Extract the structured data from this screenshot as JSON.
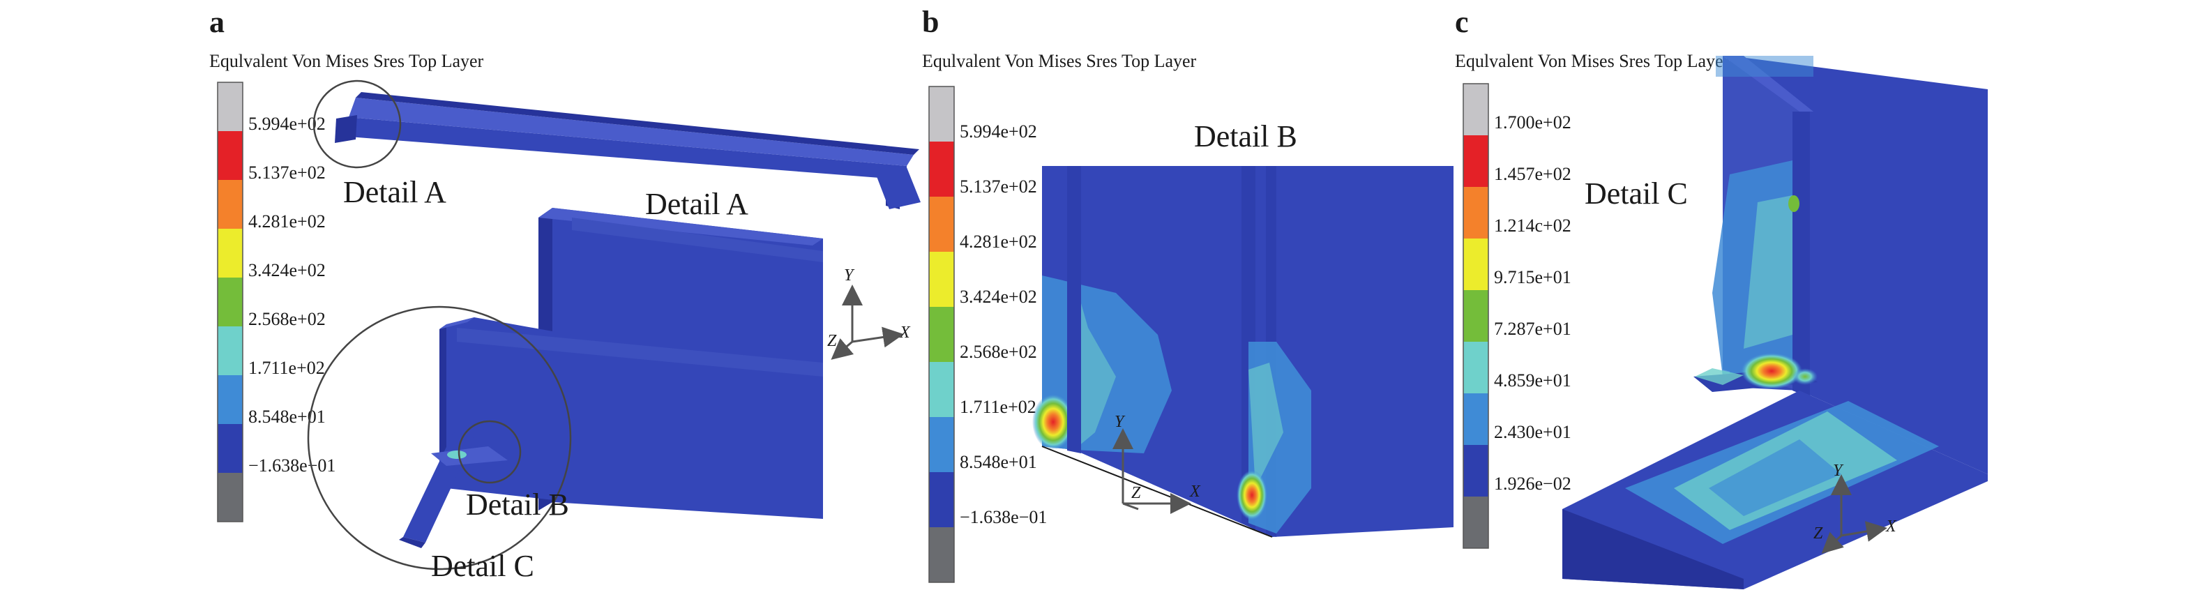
{
  "colors": {
    "levels": [
      "#c5c4c7",
      "#e42127",
      "#f4812b",
      "#ecec2c",
      "#74bd3a",
      "#6fd1cb",
      "#3f8bd6",
      "#2e3fae",
      "#6a6c70"
    ],
    "model": "#3446b8",
    "model_dark": "#26339a",
    "model_light": "#4a5ccb"
  },
  "panels": [
    {
      "id": "a",
      "label": "a",
      "title": "Equlvalent Von Mises Sres Top Layer",
      "ticks": [
        "5.994e+02",
        "5.137e+02",
        "4.281e+02",
        "3.424e+02",
        "2.568e+02",
        "1.711e+02",
        "8.548e+01",
        "−1.638e−01"
      ],
      "callouts": [
        "Detail A",
        "Detail A",
        "Detail B",
        "Detail C"
      ],
      "axes": {
        "y": "Y",
        "x": "X",
        "z": "Z"
      }
    },
    {
      "id": "b",
      "label": "b",
      "title": "Equlvalent Von Mises Sres Top Layer",
      "ticks": [
        "5.994e+02",
        "5.137e+02",
        "4.281e+02",
        "3.424e+02",
        "2.568e+02",
        "1.711e+02",
        "8.548e+01",
        "−1.638e−01"
      ],
      "callouts": [
        "Detail B"
      ],
      "axes": {
        "y": "Y",
        "x": "X",
        "z": "Z"
      }
    },
    {
      "id": "c",
      "label": "c",
      "title": "Equlvalent Von Mises Sres Top Layer",
      "ticks": [
        "1.700e+02",
        "1.457e+02",
        "1.214c+02",
        "9.715e+01",
        "7.287e+01",
        "4.859e+01",
        "2.430e+01",
        "1.926e−02"
      ],
      "callouts": [
        "Detail C"
      ],
      "axes": {
        "y": "Y",
        "x": "X",
        "z": "Z"
      }
    }
  ]
}
